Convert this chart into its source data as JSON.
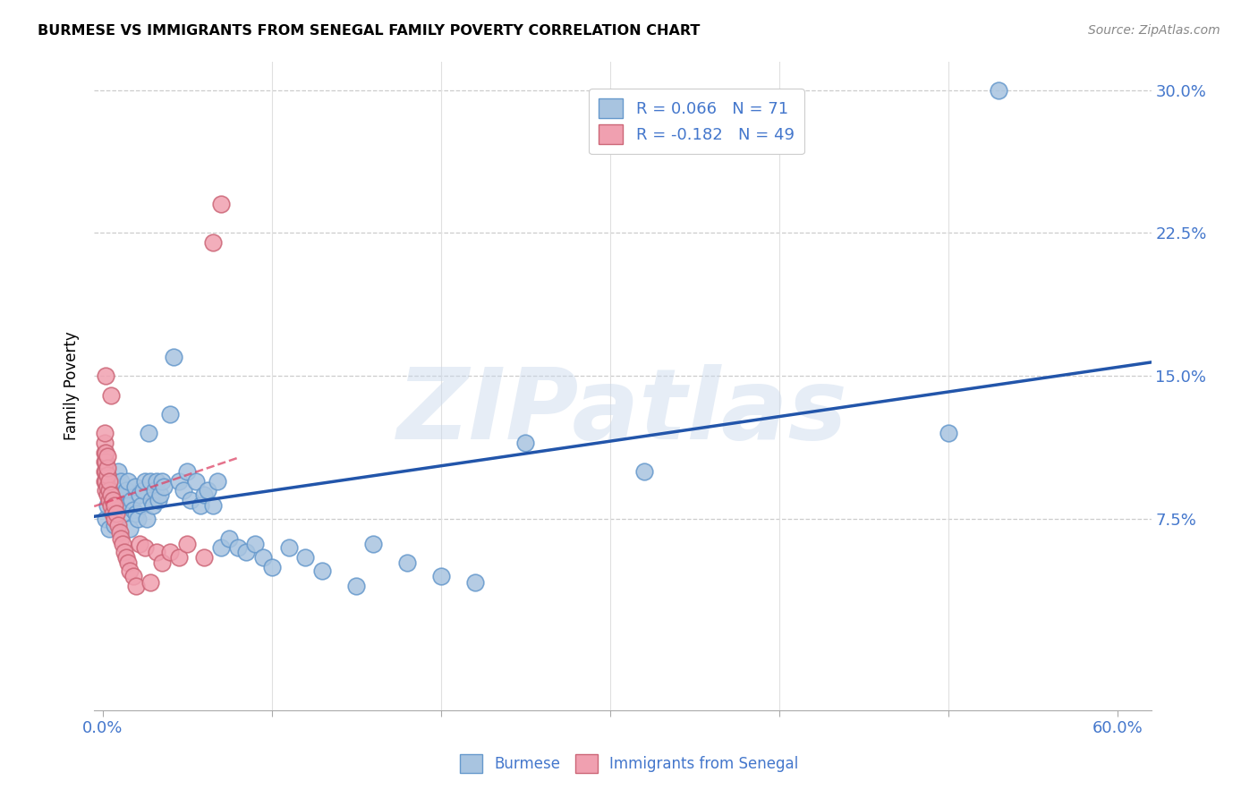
{
  "title": "BURMESE VS IMMIGRANTS FROM SENEGAL FAMILY POVERTY CORRELATION CHART",
  "source": "Source: ZipAtlas.com",
  "ylabel": "Family Poverty",
  "yticks": [
    0.0,
    0.075,
    0.15,
    0.225,
    0.3
  ],
  "ytick_labels": [
    "",
    "7.5%",
    "15.0%",
    "22.5%",
    "30.0%"
  ],
  "xlim": [
    -0.005,
    0.62
  ],
  "ylim": [
    -0.025,
    0.315
  ],
  "R_blue": 0.066,
  "N_blue": 71,
  "R_pink": -0.182,
  "N_pink": 49,
  "blue_color": "#a8c4e0",
  "pink_color": "#f0a0b0",
  "blue_edge": "#6699cc",
  "pink_edge": "#cc6677",
  "trend_blue": "#2255aa",
  "trend_pink": "#dd4466",
  "watermark": "ZIPatlas",
  "legend_text_color": "#4477cc",
  "blue_points_x": [
    0.002,
    0.003,
    0.004,
    0.005,
    0.006,
    0.006,
    0.007,
    0.008,
    0.008,
    0.009,
    0.01,
    0.01,
    0.011,
    0.012,
    0.012,
    0.013,
    0.014,
    0.015,
    0.015,
    0.016,
    0.017,
    0.018,
    0.019,
    0.02,
    0.021,
    0.022,
    0.023,
    0.024,
    0.025,
    0.026,
    0.027,
    0.028,
    0.029,
    0.03,
    0.031,
    0.032,
    0.033,
    0.034,
    0.035,
    0.036,
    0.04,
    0.042,
    0.045,
    0.048,
    0.05,
    0.052,
    0.055,
    0.058,
    0.06,
    0.062,
    0.065,
    0.068,
    0.07,
    0.075,
    0.08,
    0.085,
    0.09,
    0.095,
    0.1,
    0.11,
    0.12,
    0.13,
    0.15,
    0.16,
    0.18,
    0.2,
    0.22,
    0.25,
    0.32,
    0.5,
    0.53
  ],
  "blue_points_y": [
    0.075,
    0.082,
    0.07,
    0.09,
    0.085,
    0.095,
    0.072,
    0.08,
    0.078,
    0.1,
    0.088,
    0.092,
    0.095,
    0.085,
    0.078,
    0.088,
    0.09,
    0.082,
    0.095,
    0.07,
    0.085,
    0.08,
    0.092,
    0.078,
    0.075,
    0.088,
    0.082,
    0.09,
    0.095,
    0.075,
    0.12,
    0.095,
    0.085,
    0.082,
    0.09,
    0.095,
    0.085,
    0.088,
    0.095,
    0.092,
    0.13,
    0.16,
    0.095,
    0.09,
    0.1,
    0.085,
    0.095,
    0.082,
    0.088,
    0.09,
    0.082,
    0.095,
    0.06,
    0.065,
    0.06,
    0.058,
    0.062,
    0.055,
    0.05,
    0.06,
    0.055,
    0.048,
    0.04,
    0.062,
    0.052,
    0.045,
    0.042,
    0.115,
    0.1,
    0.12,
    0.3
  ],
  "pink_points_x": [
    0.001,
    0.001,
    0.001,
    0.001,
    0.001,
    0.001,
    0.002,
    0.002,
    0.002,
    0.002,
    0.002,
    0.002,
    0.003,
    0.003,
    0.003,
    0.003,
    0.003,
    0.004,
    0.004,
    0.004,
    0.005,
    0.005,
    0.005,
    0.006,
    0.006,
    0.007,
    0.007,
    0.008,
    0.009,
    0.01,
    0.011,
    0.012,
    0.013,
    0.014,
    0.015,
    0.016,
    0.018,
    0.02,
    0.022,
    0.025,
    0.028,
    0.032,
    0.035,
    0.04,
    0.045,
    0.05,
    0.06,
    0.065,
    0.07
  ],
  "pink_points_y": [
    0.095,
    0.1,
    0.105,
    0.11,
    0.115,
    0.12,
    0.09,
    0.095,
    0.1,
    0.105,
    0.11,
    0.15,
    0.088,
    0.092,
    0.098,
    0.102,
    0.108,
    0.085,
    0.09,
    0.095,
    0.082,
    0.088,
    0.14,
    0.078,
    0.085,
    0.075,
    0.082,
    0.078,
    0.072,
    0.068,
    0.065,
    0.062,
    0.058,
    0.055,
    0.052,
    0.048,
    0.045,
    0.04,
    0.062,
    0.06,
    0.042,
    0.058,
    0.052,
    0.058,
    0.055,
    0.062,
    0.055,
    0.22,
    0.24
  ]
}
